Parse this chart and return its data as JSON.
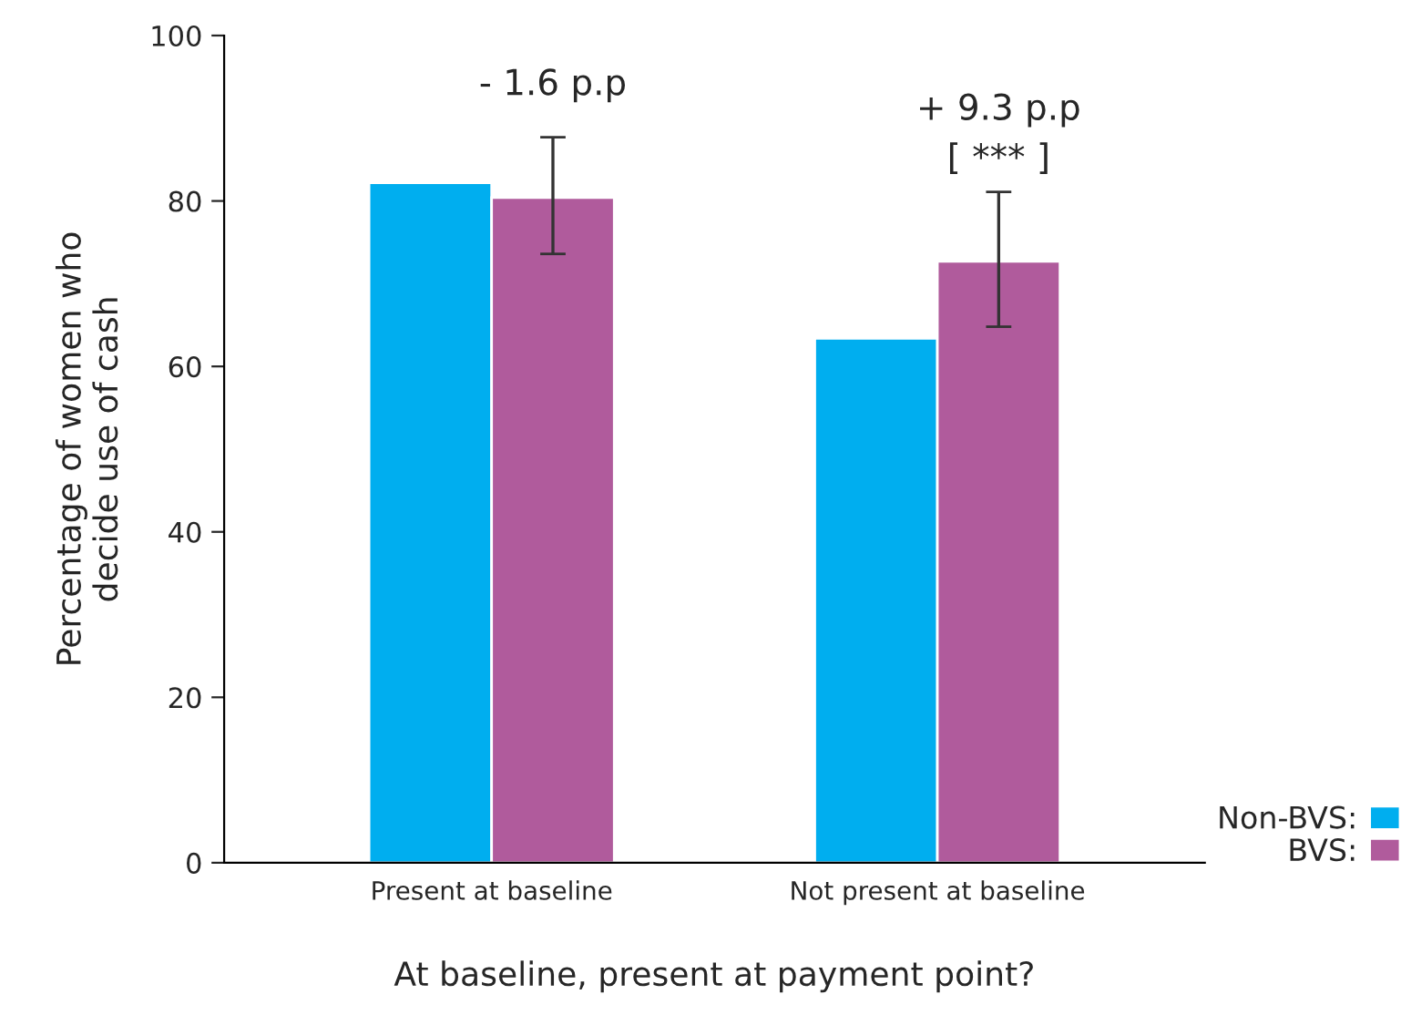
{
  "chart_data": {
    "type": "bar",
    "xlabel": "At baseline, present at payment point?",
    "ylabel": "Percentage of women who\ndecide use of cash",
    "categories": [
      "Present at baseline",
      "Not present at baseline"
    ],
    "series": [
      {
        "name": "Non-BVS:",
        "color": "#00aeef",
        "values": [
          82.2,
          63.4
        ]
      },
      {
        "name": "BVS:",
        "color": "#b05b9c",
        "values": [
          80.4,
          72.7
        ],
        "errors": [
          [
            73.6,
            87.7
          ],
          [
            64.8,
            81.1
          ]
        ]
      }
    ],
    "ylim": [
      0,
      100
    ],
    "yticks": [
      0,
      20,
      40,
      60,
      80,
      100
    ],
    "grid": false,
    "legend": "bottom right",
    "annotations": [
      "- 1.6 p.p",
      "+ 9.3 p.p",
      "[ *** ]"
    ]
  }
}
